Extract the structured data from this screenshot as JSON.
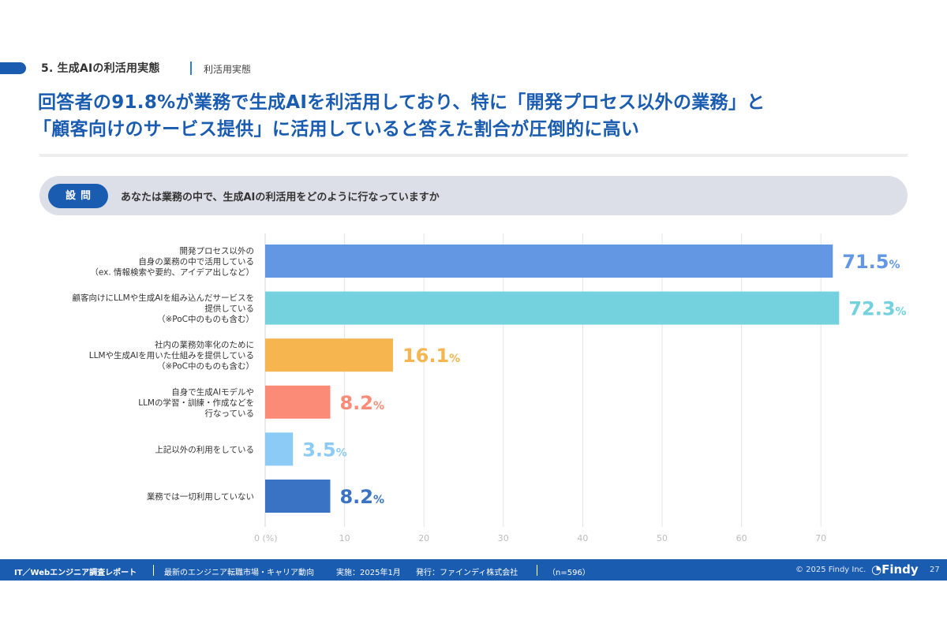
{
  "header": {
    "section_title": "5. 生成AIの利活用実態",
    "section_sub": "利活用実態",
    "headline_line1": "回答者の91.8%が業務で生成AIを利活用しており、特に「開発プロセス以外の業務」と",
    "headline_line2": "「顧客向けのサービス提供」に活用していると答えた割合が圧倒的に高い"
  },
  "question": {
    "badge": "設問",
    "text": "あなたは業務の中で、生成AIの利活用をどのように行なっていますか"
  },
  "chart_data": {
    "type": "bar",
    "orientation": "horizontal",
    "title": "",
    "xlabel": "(%)",
    "ylabel": "",
    "xlim": [
      0,
      75
    ],
    "grid": true,
    "x_ticks": [
      0,
      10,
      20,
      30,
      40,
      50,
      60,
      70
    ],
    "x_tick_labels": [
      "0 (%)",
      "10",
      "20",
      "30",
      "40",
      "50",
      "60",
      "70"
    ],
    "categories": [
      [
        "開発プロセス以外の",
        "自身の業務の中で活用している",
        "（ex. 情報検索や要約、アイデア出しなど）"
      ],
      [
        "顧客向けにLLMや生成AIを組み込んだサービスを",
        "提供している",
        "（※PoC中のものも含む）"
      ],
      [
        "社内の業務効率化のために",
        "LLMや生成AIを用いた仕組みを提供している",
        "（※PoC中のものも含む）"
      ],
      [
        "自身で生成AIモデルや",
        "LLMの学習・訓練・作成などを",
        "行なっている"
      ],
      [
        "上記以外の利用をしている"
      ],
      [
        "業務では一切利用していない"
      ]
    ],
    "values": [
      71.5,
      72.3,
      16.1,
      8.2,
      3.5,
      8.2
    ],
    "value_labels": [
      "71.5",
      "72.3",
      "16.1",
      "8.2",
      "3.5",
      "8.2"
    ],
    "value_suffix": "%",
    "colors": [
      "#6396e3",
      "#74d1de",
      "#f6b54f",
      "#fb8a76",
      "#8ccbf5",
      "#3a72c4"
    ]
  },
  "footer": {
    "report_title": "IT／Webエンジニア調査レポート",
    "subtitle": "最新のエンジニア転職市場・キャリア動向",
    "date": "実施：2025年1月",
    "publisher": "発行：ファインディ株式会社",
    "sample": "（n=596）",
    "copyright": "© 2025 Findy Inc.",
    "logo": "Findy",
    "page": "27"
  }
}
